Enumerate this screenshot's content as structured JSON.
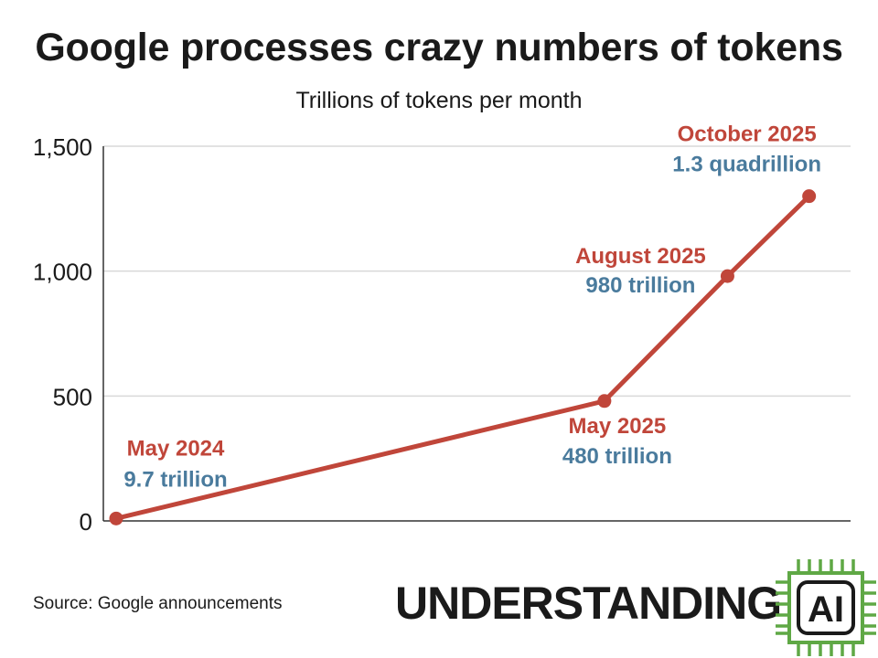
{
  "header": {
    "title": "Google processes crazy numbers of tokens",
    "subtitle": "Trillions of tokens per month"
  },
  "chart_data": {
    "type": "line",
    "title": "Google processes crazy numbers of tokens",
    "subtitle": "Trillions of tokens per month",
    "xlabel": "",
    "ylabel": "",
    "x": [
      "2024-05",
      "2025-05",
      "2025-08",
      "2025-10"
    ],
    "series": [
      {
        "values": [
          9.7,
          480,
          980,
          1300
        ]
      }
    ],
    "ylim": [
      0,
      1500
    ],
    "yticks": [
      0,
      500,
      1000,
      1500
    ],
    "ytick_labels": [
      "0",
      "500",
      "1,000",
      "1,500"
    ],
    "grid": true,
    "legend": "none",
    "annotations": [
      {
        "date": "May 2024",
        "value": "9.7 trillion"
      },
      {
        "date": "May 2025",
        "value": "480 trillion"
      },
      {
        "date": "August 2025",
        "value": "980 trillion"
      },
      {
        "date": "October 2025",
        "value": "1.3 quadrillion"
      }
    ],
    "colors": {
      "line": "#c0463a",
      "date_label": "#c0463a",
      "value_label": "#4a7b9d",
      "grid": "#d9d9d9",
      "axis": "#333333"
    }
  },
  "footer": {
    "source": "Source: Google announcements",
    "logo_text": "UNDERSTANDING",
    "logo_chip_text": "AI",
    "logo_chip_color": "#5fa845"
  }
}
